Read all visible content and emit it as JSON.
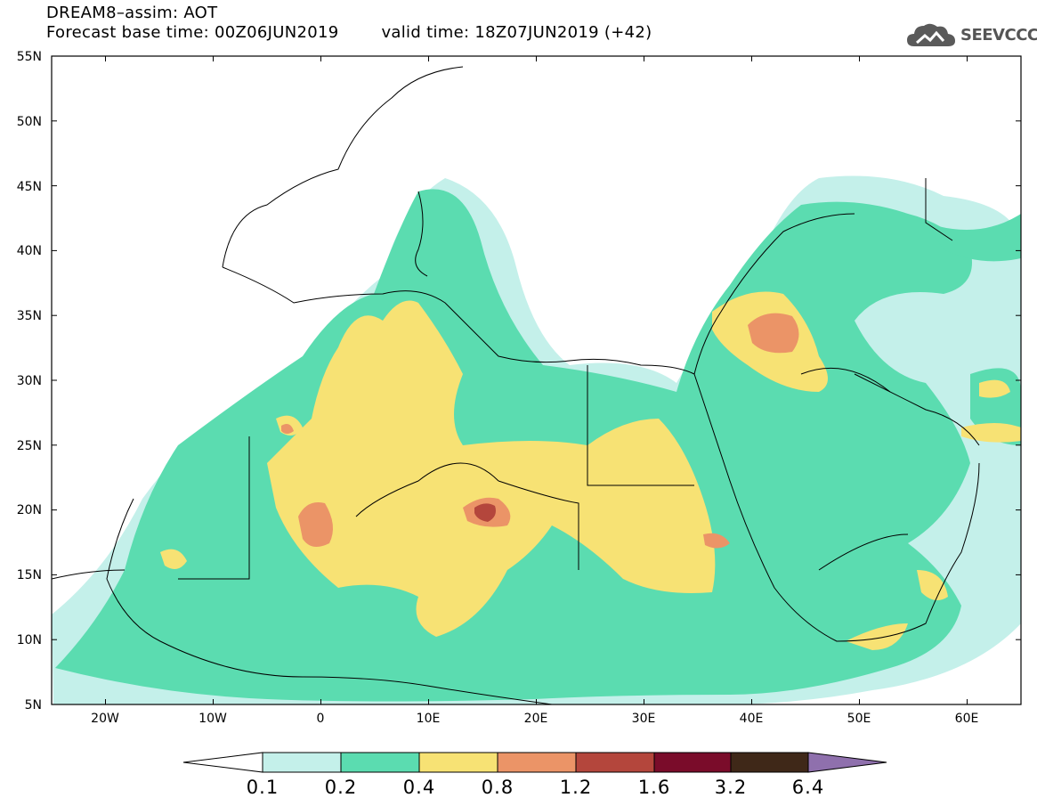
{
  "header": {
    "title": "DREAM8–assim: AOT",
    "base_time": "Forecast base time: 00Z06JUN2019",
    "valid_time": "valid time: 18Z07JUN2019 (+42)"
  },
  "logo": {
    "icon": "cloud-icon",
    "text": "SEEVCCC"
  },
  "axes": {
    "lat_ticks": [
      "55N",
      "50N",
      "45N",
      "40N",
      "35N",
      "30N",
      "25N",
      "20N",
      "15N",
      "10N",
      "5N"
    ],
    "lon_ticks": [
      "20W",
      "10W",
      "0",
      "10E",
      "20E",
      "30E",
      "40E",
      "50E",
      "60E"
    ],
    "lon_range": [
      -25,
      65
    ],
    "lat_range": [
      5,
      55
    ]
  },
  "colorbar": {
    "labels": [
      "0.1",
      "0.2",
      "0.4",
      "0.8",
      "1.2",
      "1.6",
      "3.2",
      "6.4"
    ],
    "colors": [
      "#c4f0ea",
      "#5bdcb0",
      "#f7e274",
      "#eb9467",
      "#b4463c",
      "#7a0c2a",
      "#3f2818",
      "#8f70ad"
    ],
    "under_color": "#ffffff"
  }
}
